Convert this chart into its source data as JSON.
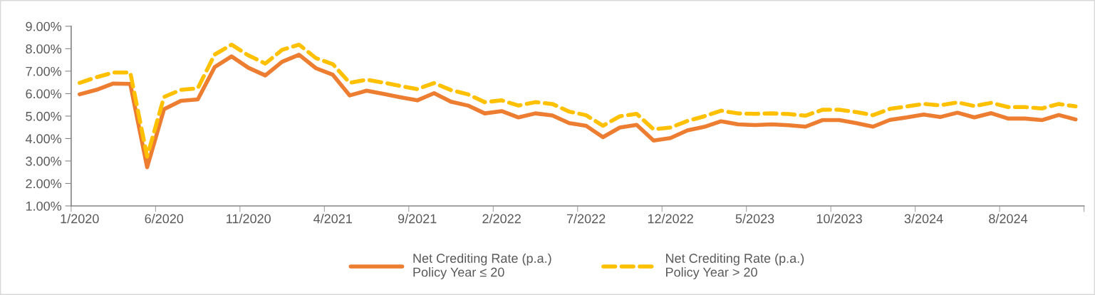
{
  "chart_data": {
    "type": "line",
    "categories": [
      "1/2020",
      null,
      null,
      null,
      null,
      "6/2020",
      null,
      null,
      null,
      null,
      "11/2020",
      null,
      null,
      null,
      null,
      "4/2021",
      null,
      null,
      null,
      null,
      "9/2021",
      null,
      null,
      null,
      null,
      "2/2022",
      null,
      null,
      null,
      null,
      "7/2022",
      null,
      null,
      null,
      null,
      "12/2022",
      null,
      null,
      null,
      null,
      "5/2023",
      null,
      null,
      null,
      null,
      "10/2023",
      null,
      null,
      null,
      null,
      "3/2024",
      null,
      null,
      null,
      null,
      "8/2024",
      null,
      null,
      null,
      null
    ],
    "series": [
      {
        "name": "Net Crediting Rate (p.a.)\nPolicy Year ≤ 20",
        "color": "#ed7d31",
        "line_style": "solid",
        "values": [
          5.97,
          6.17,
          6.45,
          6.43,
          2.72,
          5.31,
          5.68,
          5.74,
          7.18,
          7.66,
          7.15,
          6.81,
          7.42,
          7.73,
          7.13,
          6.84,
          5.92,
          6.13,
          5.99,
          5.84,
          5.7,
          6.02,
          5.64,
          5.47,
          5.12,
          5.22,
          4.94,
          5.12,
          5.03,
          4.69,
          4.57,
          4.06,
          4.49,
          4.61,
          3.91,
          4.02,
          4.36,
          4.52,
          4.77,
          4.63,
          4.6,
          4.63,
          4.59,
          4.53,
          4.82,
          4.82,
          4.69,
          4.53,
          4.83,
          4.94,
          5.07,
          4.96,
          5.15,
          4.94,
          5.13,
          4.89,
          4.89,
          4.82,
          5.05,
          4.85
        ]
      },
      {
        "name": "Net Crediting Rate (p.a.)\nPolicy Year > 20",
        "color": "#ffc000",
        "line_style": "dashed",
        "values": [
          6.48,
          6.73,
          6.94,
          6.94,
          3.2,
          5.85,
          6.17,
          6.24,
          7.74,
          8.18,
          7.7,
          7.34,
          7.95,
          8.18,
          7.58,
          7.31,
          6.48,
          6.62,
          6.49,
          6.34,
          6.2,
          6.47,
          6.16,
          5.97,
          5.62,
          5.7,
          5.47,
          5.62,
          5.54,
          5.2,
          5.04,
          4.57,
          4.99,
          5.1,
          4.41,
          4.49,
          4.78,
          4.99,
          5.24,
          5.12,
          5.1,
          5.12,
          5.09,
          5.02,
          5.28,
          5.28,
          5.18,
          5.04,
          5.32,
          5.43,
          5.54,
          5.48,
          5.61,
          5.45,
          5.59,
          5.4,
          5.4,
          5.34,
          5.54,
          5.43
        ]
      }
    ],
    "ylim": [
      1,
      9
    ],
    "yticks": [
      {
        "value": 1,
        "label": "1.00%"
      },
      {
        "value": 2,
        "label": "2.00%"
      },
      {
        "value": 3,
        "label": "3.00%"
      },
      {
        "value": 4,
        "label": "4.00%"
      },
      {
        "value": 5,
        "label": "5.00%"
      },
      {
        "value": 6,
        "label": "6.00%"
      },
      {
        "value": 7,
        "label": "7.00%"
      },
      {
        "value": 8,
        "label": "8.00%"
      },
      {
        "value": 9,
        "label": "9.00%"
      }
    ],
    "grid": false,
    "legend": "bottom",
    "marker": "none"
  }
}
